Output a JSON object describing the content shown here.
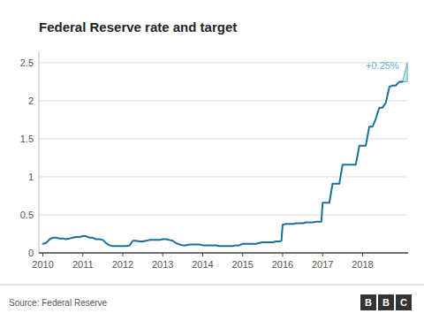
{
  "chart_data": {
    "type": "line",
    "title": "Federal Reserve rate and target",
    "source": "Source: Federal Reserve",
    "logo": "BBC",
    "color": "#1a7099",
    "grid": true,
    "xlim": [
      2009.9,
      2019.14
    ],
    "xticks": [
      2010,
      2011,
      2012,
      2013,
      2014,
      2015,
      2016,
      2017,
      2018
    ],
    "ylim": [
      0,
      2.65
    ],
    "yticks": [
      0.0,
      0.5,
      1.0,
      1.5,
      2.0,
      2.5
    ],
    "x": [
      2010.0,
      2010.08,
      2010.17,
      2010.25,
      2010.33,
      2010.42,
      2010.5,
      2010.58,
      2010.67,
      2010.75,
      2010.83,
      2010.92,
      2011.0,
      2011.08,
      2011.17,
      2011.25,
      2011.33,
      2011.42,
      2011.5,
      2011.58,
      2011.67,
      2011.75,
      2011.83,
      2011.92,
      2012.0,
      2012.08,
      2012.17,
      2012.25,
      2012.33,
      2012.42,
      2012.5,
      2012.58,
      2012.67,
      2012.75,
      2012.83,
      2012.92,
      2013.0,
      2013.08,
      2013.17,
      2013.25,
      2013.33,
      2013.42,
      2013.5,
      2013.58,
      2013.67,
      2013.75,
      2013.83,
      2013.92,
      2014.0,
      2014.08,
      2014.17,
      2014.25,
      2014.33,
      2014.42,
      2014.5,
      2014.58,
      2014.67,
      2014.75,
      2014.83,
      2014.92,
      2015.0,
      2015.08,
      2015.17,
      2015.25,
      2015.33,
      2015.42,
      2015.5,
      2015.58,
      2015.67,
      2015.75,
      2015.83,
      2015.92,
      2015.97,
      2016.0,
      2016.08,
      2016.17,
      2016.25,
      2016.33,
      2016.42,
      2016.5,
      2016.58,
      2016.67,
      2016.75,
      2016.83,
      2016.92,
      2016.97,
      2017.0,
      2017.08,
      2017.17,
      2017.25,
      2017.33,
      2017.42,
      2017.5,
      2017.58,
      2017.67,
      2017.75,
      2017.83,
      2017.92,
      2017.97,
      2018.0,
      2018.08,
      2018.17,
      2018.25,
      2018.33,
      2018.42,
      2018.5,
      2018.58,
      2018.67,
      2018.75,
      2018.83,
      2018.92,
      2019.0
    ],
    "values": [
      0.12,
      0.13,
      0.18,
      0.2,
      0.2,
      0.19,
      0.19,
      0.18,
      0.19,
      0.2,
      0.21,
      0.21,
      0.22,
      0.22,
      0.2,
      0.2,
      0.18,
      0.18,
      0.17,
      0.13,
      0.1,
      0.09,
      0.09,
      0.09,
      0.09,
      0.09,
      0.1,
      0.16,
      0.16,
      0.15,
      0.15,
      0.16,
      0.17,
      0.17,
      0.17,
      0.17,
      0.18,
      0.18,
      0.17,
      0.16,
      0.13,
      0.11,
      0.1,
      0.1,
      0.11,
      0.11,
      0.11,
      0.11,
      0.1,
      0.1,
      0.1,
      0.1,
      0.1,
      0.09,
      0.09,
      0.09,
      0.09,
      0.09,
      0.1,
      0.1,
      0.12,
      0.12,
      0.12,
      0.12,
      0.12,
      0.13,
      0.14,
      0.14,
      0.14,
      0.14,
      0.15,
      0.15,
      0.16,
      0.37,
      0.38,
      0.38,
      0.38,
      0.39,
      0.39,
      0.39,
      0.4,
      0.4,
      0.4,
      0.41,
      0.41,
      0.41,
      0.66,
      0.66,
      0.66,
      0.91,
      0.91,
      0.91,
      1.16,
      1.16,
      1.16,
      1.16,
      1.16,
      1.41,
      1.41,
      1.41,
      1.41,
      1.66,
      1.66,
      1.76,
      1.91,
      1.91,
      1.97,
      2.18,
      2.2,
      2.2,
      2.25,
      2.25
    ],
    "projection": {
      "x_end": 2019.12,
      "value_end": 2.5,
      "label": "+0.25%",
      "color": "#5bb3cc"
    }
  }
}
